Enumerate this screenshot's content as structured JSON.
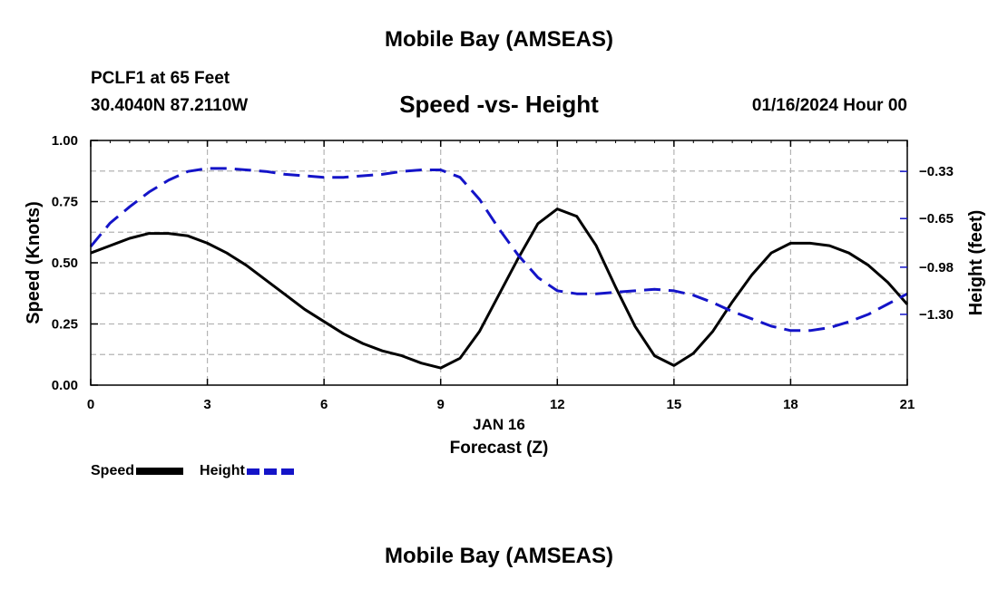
{
  "chart_data": {
    "type": "line",
    "title": "Mobile Bay (AMSEAS)",
    "subtitle": "Speed -vs- Height",
    "station": "PCLF1 at 65 Feet",
    "coords": "30.4040N  87.2110W",
    "date": "01/16/2024 Hour 00",
    "xlabel_date": "JAN 16",
    "xlabel": "Forecast (Z)",
    "ylabel": "Speed (Knots)",
    "y2label": "Height (feet)",
    "xlim": [
      0,
      21
    ],
    "ylim": [
      0,
      1
    ],
    "y2lim": [
      -1.78,
      -0.12
    ],
    "x_ticks": [
      0,
      3,
      6,
      9,
      12,
      15,
      18,
      21
    ],
    "x_tick_labels": [
      "0",
      "3",
      "6",
      "9",
      "12",
      "15",
      "18",
      "21"
    ],
    "y_ticks": [
      0,
      0.25,
      0.5,
      0.75,
      1
    ],
    "y_tick_labels": [
      "0.00",
      "0.25",
      "0.50",
      "0.75",
      "1.00"
    ],
    "y2_ticks": [
      -0.33,
      -0.65,
      -0.98,
      -1.3
    ],
    "y2_tick_labels": [
      "−0.33",
      "−0.65",
      "−0.98",
      "−1.30"
    ],
    "grid": true,
    "legend_position": "bottom-left",
    "series": [
      {
        "name": "Speed",
        "axis": "left",
        "color": "#000000",
        "style": "solid",
        "x": [
          0,
          0.5,
          1,
          1.5,
          2,
          2.5,
          3,
          3.5,
          4,
          4.5,
          5,
          5.5,
          6,
          6.5,
          7,
          7.5,
          8,
          8.5,
          9,
          9.5,
          10,
          10.5,
          11,
          11.5,
          12,
          12.5,
          13,
          13.5,
          14,
          14.5,
          15,
          15.5,
          16,
          16.5,
          17,
          17.5,
          18,
          18.5,
          19,
          19.5,
          20,
          20.5,
          21
        ],
        "values": [
          0.54,
          0.57,
          0.6,
          0.62,
          0.62,
          0.61,
          0.58,
          0.54,
          0.49,
          0.43,
          0.37,
          0.31,
          0.26,
          0.21,
          0.17,
          0.14,
          0.12,
          0.09,
          0.07,
          0.11,
          0.22,
          0.37,
          0.52,
          0.66,
          0.72,
          0.69,
          0.57,
          0.4,
          0.24,
          0.12,
          0.08,
          0.13,
          0.22,
          0.34,
          0.45,
          0.54,
          0.58,
          0.58,
          0.57,
          0.54,
          0.49,
          0.42,
          0.33
        ]
      },
      {
        "name": "Height",
        "axis": "right",
        "color": "#1414c8",
        "style": "dashed",
        "x": [
          0,
          0.5,
          1,
          1.5,
          2,
          2.5,
          3,
          3.5,
          4,
          4.5,
          5,
          5.5,
          6,
          6.5,
          7,
          7.5,
          8,
          8.5,
          9,
          9.5,
          10,
          10.5,
          11,
          11.5,
          12,
          12.5,
          13,
          13.5,
          14,
          14.5,
          15,
          15.5,
          16,
          16.5,
          17,
          17.5,
          18,
          18.5,
          19,
          19.5,
          20,
          20.5,
          21
        ],
        "values": [
          -0.84,
          -0.68,
          -0.57,
          -0.47,
          -0.39,
          -0.33,
          -0.31,
          -0.31,
          -0.32,
          -0.33,
          -0.35,
          -0.36,
          -0.37,
          -0.37,
          -0.36,
          -0.35,
          -0.33,
          -0.32,
          -0.32,
          -0.37,
          -0.52,
          -0.72,
          -0.9,
          -1.05,
          -1.14,
          -1.16,
          -1.16,
          -1.15,
          -1.14,
          -1.13,
          -1.14,
          -1.17,
          -1.22,
          -1.28,
          -1.33,
          -1.38,
          -1.41,
          -1.41,
          -1.39,
          -1.35,
          -1.3,
          -1.23,
          -1.16
        ]
      }
    ]
  }
}
